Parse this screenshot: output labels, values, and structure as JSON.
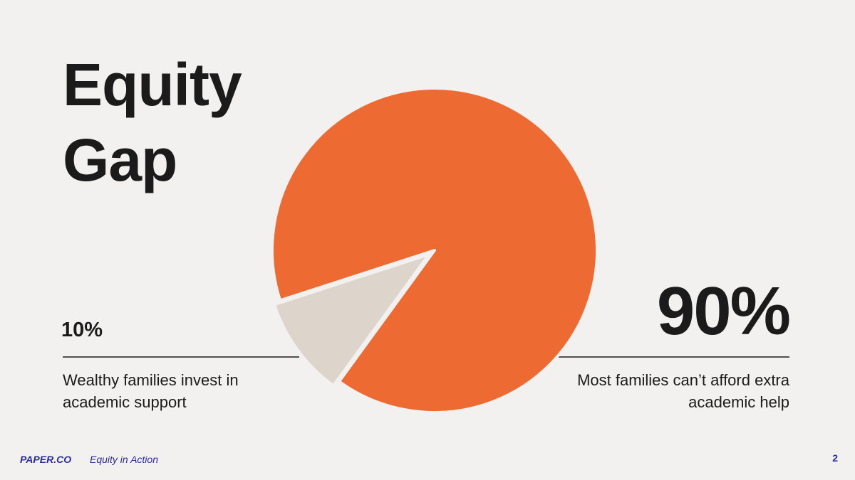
{
  "chart_data": {
    "type": "pie",
    "title": "Equity Gap",
    "categories": [
      "Wealthy families invest in academic support",
      "Most families can’t afford extra academic help"
    ],
    "values": [
      10,
      90
    ],
    "value_labels": [
      "10%",
      "90%"
    ],
    "colors": [
      "#ddd5cc",
      "#ee6a33"
    ]
  },
  "footer": {
    "brand": "PAPER.CO",
    "tagline": "Equity in Action",
    "page": "2"
  }
}
